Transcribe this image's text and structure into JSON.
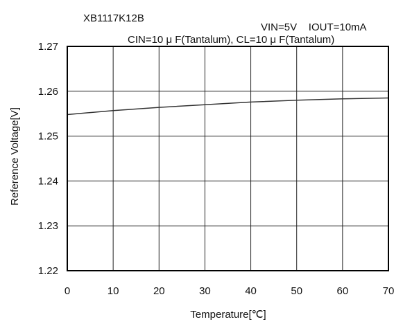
{
  "chart_data": {
    "type": "line",
    "part_number": "XB1117K12B",
    "conditions": {
      "line1": "VIN=5V    IOUT=10mA",
      "line2": "CIN=10 μ F(Tantalum), CL=10 μ F(Tantalum)"
    },
    "xlabel": "Temperature[℃]",
    "ylabel": "Reference Voltage[V]",
    "xlim": [
      0,
      70
    ],
    "ylim": [
      1.22,
      1.27
    ],
    "xticks": [
      0,
      10,
      20,
      30,
      40,
      50,
      60,
      70
    ],
    "xtick_labels": [
      "0",
      "10",
      "20",
      "30",
      "40",
      "50",
      "60",
      "70"
    ],
    "yticks": [
      1.22,
      1.23,
      1.24,
      1.25,
      1.26,
      1.27
    ],
    "ytick_labels": [
      "1.22",
      "1.23",
      "1.24",
      "1.25",
      "1.26",
      "1.27"
    ],
    "grid": true,
    "series": [
      {
        "x": [
          0,
          10,
          20,
          30,
          40,
          50,
          60,
          70
        ],
        "y": [
          1.2548,
          1.2557,
          1.2564,
          1.257,
          1.2576,
          1.258,
          1.2583,
          1.2585
        ]
      }
    ],
    "line_color": "#333333"
  }
}
